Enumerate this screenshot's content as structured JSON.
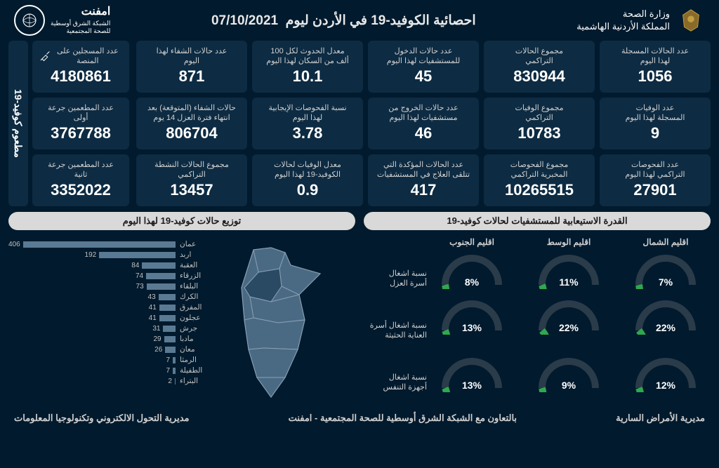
{
  "header": {
    "ministry_line1": "وزارة الصحة",
    "ministry_line2": "المملكة الأردنية الهاشمية",
    "title": "احصائية الكوفيد-19 في الأردن ليوم",
    "date": "07/10/2021",
    "network_name": "امفنت",
    "network_sub": "الشبكة الشرق أوسطية\nللصحة المجتمعية"
  },
  "colors": {
    "bg": "#011a2d",
    "card": "#0d2b42",
    "text_muted": "#d0d0d0",
    "panel_title_bg": "#d9d9d9",
    "panel_title_text": "#1a1a1a",
    "gauge_track": "#2a3b4a",
    "gauge_fill": "#2fa84f",
    "bar_fill": "#5a7a94",
    "map_fill": "#4a6a84",
    "map_highlight": "#2a4a64",
    "map_stroke": "#8aa0b4"
  },
  "stats": [
    {
      "label": "عدد الحالات المسجلة\nلهذا اليوم",
      "value": "1056"
    },
    {
      "label": "مجموع الحالات\nالتراكمي",
      "value": "830944"
    },
    {
      "label": "عدد حالات الدخول\nللمستشفيات لهذا اليوم",
      "value": "45"
    },
    {
      "label": "معدل الحدوث لكل 100\nألف من السكان لهذا اليوم",
      "value": "10.1"
    },
    {
      "label": "عدد حالات الشفاء لهذا\nاليوم",
      "value": "871"
    },
    {
      "label": "عدد الوفيات\nالمسجلة لهذا اليوم",
      "value": "9"
    },
    {
      "label": "مجموع الوفيات\nالتراكمي",
      "value": "10783"
    },
    {
      "label": "عدد حالات الخروج من\nمستشفيات لهذا اليوم",
      "value": "46"
    },
    {
      "label": "نسبة الفحوصات الإيجابية\nلهذا اليوم",
      "value": "3.78"
    },
    {
      "label": "حالات الشفاء (المتوقعة) بعد\nانتهاء فترة العزل 14 يوم",
      "value": "806704"
    },
    {
      "label": "عدد الفحوصات\nالتراكمي لهذا اليوم",
      "value": "27901"
    },
    {
      "label": "مجموع الفحوصات\nالمخبرية التراكمي",
      "value": "10265515"
    },
    {
      "label": "عدد الحالات المؤكدة التي\nتتلقى العلاج في المستشفيات",
      "value": "417"
    },
    {
      "label": "معدل الوفيات لحالات\nالكوفيد-19 لهذا اليوم",
      "value": "0.9"
    },
    {
      "label": "مجموع الحالات النشطة\nالتراكمي",
      "value": "13457"
    }
  ],
  "vaccine": {
    "tab": "مطعوم كوفيد-19",
    "cards": [
      {
        "label": "عدد المسجلين على المنصة",
        "value": "4180861",
        "icon": "syringe"
      },
      {
        "label": "عدد المطعمين جرعة\nأولى",
        "value": "3767788"
      },
      {
        "label": "عدد المطعمين جرعة\nثانية",
        "value": "3352022"
      }
    ]
  },
  "capacity": {
    "title": "القدرة الاستيعابية للمستشفيات لحالات كوفيد-19",
    "regions": [
      "اقليم الشمال",
      "اقليم الوسط",
      "اقليم الجنوب"
    ],
    "metrics": [
      "نسبة اشغال\nأسرة العزل",
      "نسبة اشغال أسرة\nالعناية الحثيثة",
      "نسبة اشغال\nأجهزة التنفس"
    ],
    "values": [
      [
        7,
        11,
        8
      ],
      [
        22,
        22,
        13
      ],
      [
        12,
        9,
        13
      ]
    ]
  },
  "distribution": {
    "title": "توزيع حالات كوفيد-19 لهذا اليوم",
    "max": 420,
    "items": [
      {
        "name": "عمان",
        "value": 406
      },
      {
        "name": "اربد",
        "value": 192
      },
      {
        "name": "العقبة",
        "value": 84
      },
      {
        "name": "الزرقاء",
        "value": 74
      },
      {
        "name": "البلقاء",
        "value": 73
      },
      {
        "name": "الكرك",
        "value": 43
      },
      {
        "name": "المفرق",
        "value": 41
      },
      {
        "name": "عجلون",
        "value": 41
      },
      {
        "name": "جرش",
        "value": 31
      },
      {
        "name": "مادبا",
        "value": 29
      },
      {
        "name": "معان",
        "value": 26
      },
      {
        "name": "الرمثا",
        "value": 7
      },
      {
        "name": "الطفيلة",
        "value": 7
      },
      {
        "name": "البتراء",
        "value": 2
      }
    ]
  },
  "footer": {
    "right": "مديرية الأمراض السارية",
    "center": "بالتعاون مع الشبكة الشرق أوسطية للصحة المجتمعية - امفنت",
    "left": "مديرية التحول الالكتروني وتكنولوجيا المعلومات"
  }
}
